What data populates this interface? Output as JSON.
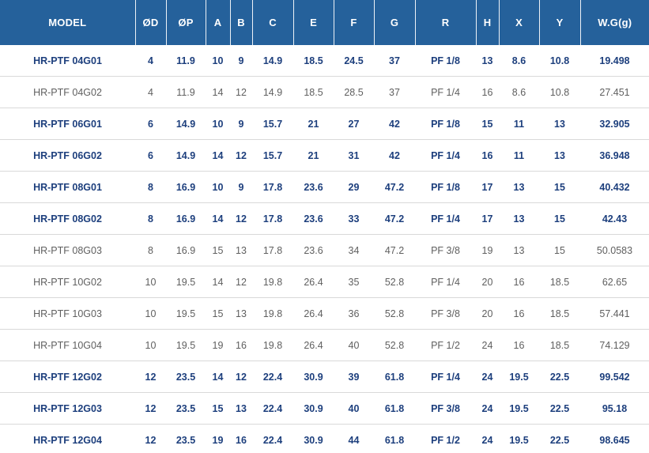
{
  "table": {
    "columns": [
      {
        "key": "model",
        "label": "MODEL"
      },
      {
        "key": "od",
        "label": "ØD"
      },
      {
        "key": "op",
        "label": "ØP"
      },
      {
        "key": "a",
        "label": "A"
      },
      {
        "key": "b",
        "label": "B"
      },
      {
        "key": "c",
        "label": "C"
      },
      {
        "key": "e",
        "label": "E"
      },
      {
        "key": "f",
        "label": "F"
      },
      {
        "key": "g",
        "label": "G"
      },
      {
        "key": "r",
        "label": "R"
      },
      {
        "key": "h",
        "label": "H"
      },
      {
        "key": "x",
        "label": "X"
      },
      {
        "key": "y",
        "label": "Y"
      },
      {
        "key": "wg",
        "label": "W.G(g)"
      }
    ],
    "rows": [
      {
        "model": "HR-PTF 04G01",
        "values": [
          "4",
          "11.9",
          "10",
          "9",
          "14.9",
          "18.5",
          "24.5",
          "37",
          "PF 1/8",
          "13",
          "8.6",
          "10.8",
          "19.498"
        ],
        "emphasis": true
      },
      {
        "model": "HR-PTF 04G02",
        "values": [
          "4",
          "11.9",
          "14",
          "12",
          "14.9",
          "18.5",
          "28.5",
          "37",
          "PF 1/4",
          "16",
          "8.6",
          "10.8",
          "27.451"
        ],
        "emphasis": false
      },
      {
        "model": "HR-PTF 06G01",
        "values": [
          "6",
          "14.9",
          "10",
          "9",
          "15.7",
          "21",
          "27",
          "42",
          "PF 1/8",
          "15",
          "11",
          "13",
          "32.905"
        ],
        "emphasis": true
      },
      {
        "model": "HR-PTF 06G02",
        "values": [
          "6",
          "14.9",
          "14",
          "12",
          "15.7",
          "21",
          "31",
          "42",
          "PF 1/4",
          "16",
          "11",
          "13",
          "36.948"
        ],
        "emphasis": true
      },
      {
        "model": "HR-PTF 08G01",
        "values": [
          "8",
          "16.9",
          "10",
          "9",
          "17.8",
          "23.6",
          "29",
          "47.2",
          "PF 1/8",
          "17",
          "13",
          "15",
          "40.432"
        ],
        "emphasis": true
      },
      {
        "model": "HR-PTF 08G02",
        "values": [
          "8",
          "16.9",
          "14",
          "12",
          "17.8",
          "23.6",
          "33",
          "47.2",
          "PF 1/4",
          "17",
          "13",
          "15",
          "42.43"
        ],
        "emphasis": true
      },
      {
        "model": "HR-PTF 08G03",
        "values": [
          "8",
          "16.9",
          "15",
          "13",
          "17.8",
          "23.6",
          "34",
          "47.2",
          "PF 3/8",
          "19",
          "13",
          "15",
          "50.0583"
        ],
        "emphasis": false
      },
      {
        "model": "HR-PTF 10G02",
        "values": [
          "10",
          "19.5",
          "14",
          "12",
          "19.8",
          "26.4",
          "35",
          "52.8",
          "PF 1/4",
          "20",
          "16",
          "18.5",
          "62.65"
        ],
        "emphasis": false
      },
      {
        "model": "HR-PTF 10G03",
        "values": [
          "10",
          "19.5",
          "15",
          "13",
          "19.8",
          "26.4",
          "36",
          "52.8",
          "PF 3/8",
          "20",
          "16",
          "18.5",
          "57.441"
        ],
        "emphasis": false
      },
      {
        "model": "HR-PTF 10G04",
        "values": [
          "10",
          "19.5",
          "19",
          "16",
          "19.8",
          "26.4",
          "40",
          "52.8",
          "PF 1/2",
          "24",
          "16",
          "18.5",
          "74.129"
        ],
        "emphasis": false
      },
      {
        "model": "HR-PTF 12G02",
        "values": [
          "12",
          "23.5",
          "14",
          "12",
          "22.4",
          "30.9",
          "39",
          "61.8",
          "PF 1/4",
          "24",
          "19.5",
          "22.5",
          "99.542"
        ],
        "emphasis": true
      },
      {
        "model": "HR-PTF 12G03",
        "values": [
          "12",
          "23.5",
          "15",
          "13",
          "22.4",
          "30.9",
          "40",
          "61.8",
          "PF 3/8",
          "24",
          "19.5",
          "22.5",
          "95.18"
        ],
        "emphasis": true
      },
      {
        "model": "HR-PTF 12G04",
        "values": [
          "12",
          "23.5",
          "19",
          "16",
          "22.4",
          "30.9",
          "44",
          "61.8",
          "PF 1/2",
          "24",
          "19.5",
          "22.5",
          "98.645"
        ],
        "emphasis": true
      }
    ],
    "colors": {
      "header_bg": "#25619b",
      "header_text": "#ffffff",
      "emphasis_text": "#1d3f7d",
      "normal_text": "#5f5f5f",
      "row_divider": "#d9d9d9",
      "bottom_border": "#1e3d6e"
    }
  }
}
